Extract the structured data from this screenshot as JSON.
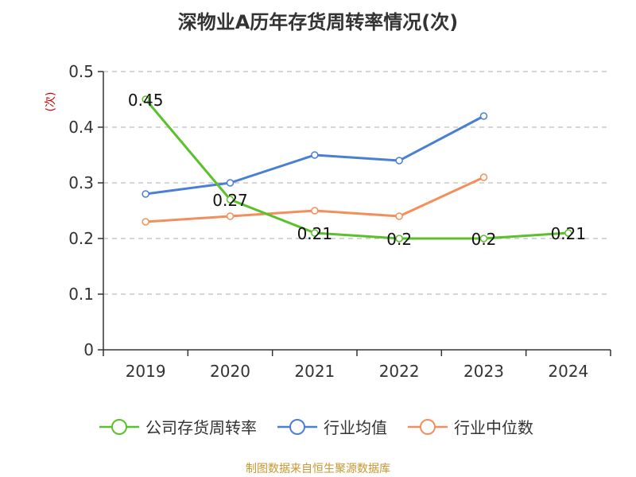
{
  "chart_data": {
    "type": "line",
    "title": "深物业A历年存货周转率情况(次)",
    "ylabel": "(次)",
    "xlabel": "",
    "categories": [
      "2019",
      "2020",
      "2021",
      "2022",
      "2023",
      "2024"
    ],
    "ylim": [
      0,
      0.5
    ],
    "yticks": [
      "0",
      "0.1",
      "0.2",
      "0.3",
      "0.4",
      "0.5"
    ],
    "grid": true,
    "legend_position": "bottom",
    "series": [
      {
        "name": "公司存货周转率",
        "color": "#5ac12c",
        "values": [
          0.45,
          0.27,
          0.21,
          0.2,
          0.2,
          0.21
        ],
        "labels": [
          "0.45",
          "0.27",
          "0.21",
          "0.2",
          "0.2",
          "0.21"
        ]
      },
      {
        "name": "行业均值",
        "color": "#4a7fd6",
        "values": [
          0.28,
          0.3,
          0.35,
          0.34,
          0.42,
          null
        ]
      },
      {
        "name": "行业中位数",
        "color": "#f28f5c",
        "values": [
          0.23,
          0.24,
          0.25,
          0.24,
          0.31,
          null
        ]
      }
    ]
  },
  "source": "制图数据来自恒生聚源数据库"
}
